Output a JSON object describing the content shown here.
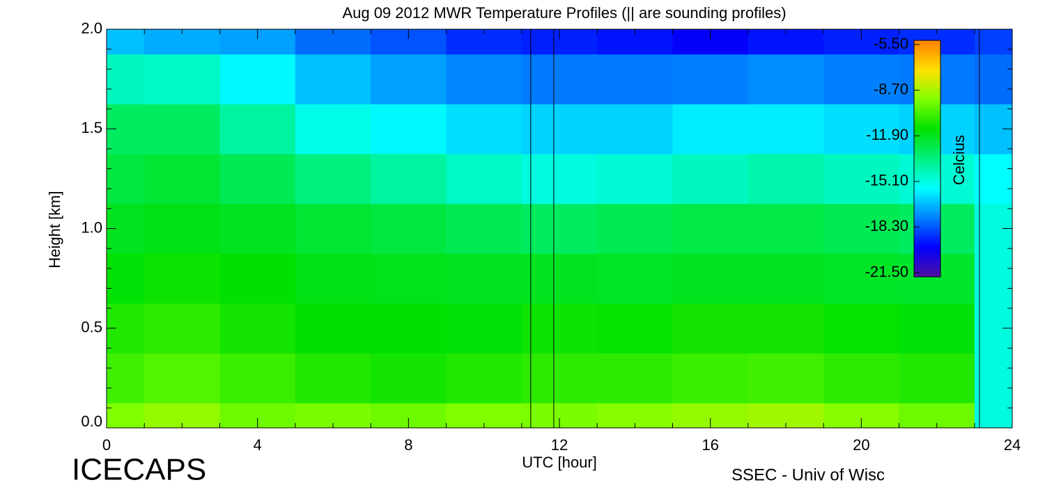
{
  "chart_data": {
    "type": "heatmap",
    "title": "Aug 09 2012 MWR Temperature Profiles (|| are sounding profiles)",
    "xlabel": "UTC [hour]",
    "ylabel": "Height [km]",
    "x": [
      0,
      2,
      4,
      6,
      8,
      10,
      12,
      14,
      16,
      18,
      20,
      22,
      24
    ],
    "y": [
      0,
      0.25,
      0.5,
      0.75,
      1.0,
      1.25,
      1.5,
      1.75,
      2.0
    ],
    "z": [
      [
        -9.5,
        -9.2,
        -9.8,
        -9.6,
        -9.8,
        -9.5,
        -9.6,
        -9.4,
        -9.2,
        -9.0,
        -9.4,
        -9.8,
        -15
      ],
      [
        -10.5,
        -10.2,
        -10.6,
        -11.0,
        -11.2,
        -11.0,
        -10.8,
        -10.8,
        -10.6,
        -10.5,
        -10.8,
        -11.0,
        -15
      ],
      [
        -11.0,
        -10.8,
        -11.2,
        -11.5,
        -11.5,
        -11.6,
        -11.3,
        -11.4,
        -11.2,
        -11.2,
        -11.4,
        -11.6,
        -15
      ],
      [
        -11.6,
        -11.3,
        -11.5,
        -11.8,
        -11.9,
        -12.0,
        -12.0,
        -12.1,
        -12.0,
        -12.0,
        -12.1,
        -12.2,
        -15
      ],
      [
        -12.0,
        -11.8,
        -12.0,
        -12.3,
        -12.5,
        -12.8,
        -13.0,
        -12.8,
        -12.6,
        -12.6,
        -12.8,
        -13.0,
        -15
      ],
      [
        -12.5,
        -12.3,
        -12.8,
        -13.5,
        -14.0,
        -14.6,
        -15.0,
        -14.8,
        -14.5,
        -14.2,
        -14.5,
        -14.8,
        -15.5
      ],
      [
        -13.0,
        -13.0,
        -14.0,
        -15.2,
        -15.6,
        -16.0,
        -16.2,
        -16.2,
        -15.8,
        -15.8,
        -16.0,
        -16.2,
        -16.5
      ],
      [
        -14.5,
        -14.6,
        -15.6,
        -16.5,
        -17.0,
        -17.4,
        -17.6,
        -17.6,
        -17.5,
        -17.3,
        -17.5,
        -17.6,
        -17.8
      ],
      [
        -16.5,
        -16.8,
        -17.0,
        -17.8,
        -18.2,
        -18.8,
        -19.0,
        -19.2,
        -19.6,
        -19.2,
        -19.0,
        -18.8,
        -18.5
      ]
    ],
    "sounding_times": [
      11.24,
      11.85,
      23.13
    ],
    "xlim": [
      0,
      24
    ],
    "xticks": [
      0,
      4,
      8,
      12,
      16,
      20,
      24
    ],
    "ylim": [
      0,
      2
    ],
    "yticks": [
      {
        "value": 0,
        "label": "0.0"
      },
      0.5,
      {
        "value": 1,
        "label": "1.0"
      },
      1.5,
      {
        "value": 2,
        "label": "2.0"
      }
    ],
    "colorbar_label": "Celcius",
    "clim": [
      -21.5,
      -5.5
    ],
    "cticks": [
      {
        "value": -5.5,
        "label": "-5.50"
      },
      {
        "value": -8.7,
        "label": "-8.70"
      },
      {
        "value": -11.9,
        "label": "-11.90"
      },
      {
        "value": -15.1,
        "label": "-15.10"
      },
      {
        "value": -18.3,
        "label": "-18.30"
      },
      {
        "value": -21.5,
        "label": "-21.50"
      }
    ],
    "colorscale": [
      "#5010a0",
      "#0000ff",
      "#0080ff",
      "#00ffff",
      "#00f080",
      "#00e000",
      "#80ff00",
      "#ffe000",
      "#ff8000"
    ],
    "footer_left": "ICECAPS",
    "footer_right": "SSEC - Univ of Wisc"
  }
}
